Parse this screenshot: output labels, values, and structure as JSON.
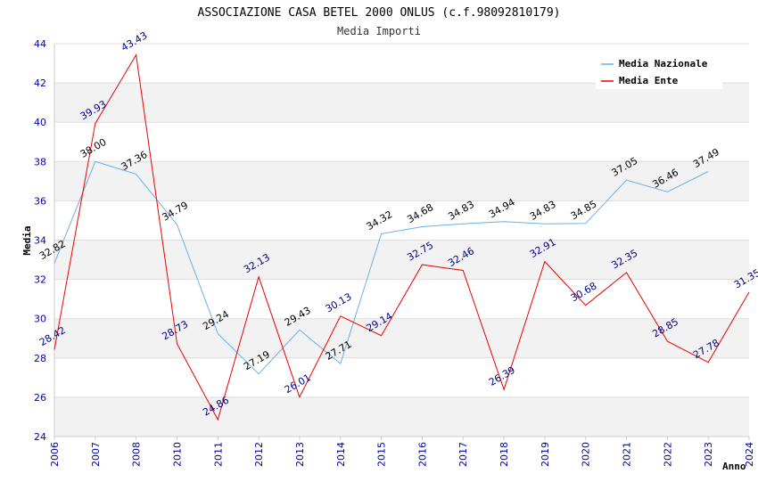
{
  "chart_data": {
    "type": "line",
    "title": "ASSOCIAZIONE CASA BETEL 2000 ONLUS (c.f.98092810179)",
    "subtitle": "Media Importi",
    "xlabel": "Anno",
    "ylabel": "Media",
    "ylim": [
      24,
      44
    ],
    "yticks": [
      "24",
      "26",
      "28",
      "30",
      "32",
      "34",
      "36",
      "38",
      "40",
      "42",
      "44"
    ],
    "categories": [
      "2006",
      "2007",
      "2008",
      "2010",
      "2011",
      "2012",
      "2013",
      "2014",
      "2015",
      "2016",
      "2017",
      "2018",
      "2019",
      "2020",
      "2021",
      "2022",
      "2023",
      "2024"
    ],
    "grid": true,
    "legend_position": "top-right",
    "series": [
      {
        "name": "Media Nazionale",
        "color": "#6aaee8",
        "label_color": "#000000",
        "values": [
          32.82,
          38.0,
          37.36,
          34.79,
          29.24,
          27.19,
          29.43,
          27.71,
          34.32,
          34.68,
          34.83,
          34.94,
          34.83,
          34.85,
          37.05,
          36.46,
          37.49,
          null
        ],
        "labels": [
          "32.82",
          "38.00",
          "37.36",
          "34.79",
          "29.24",
          "27.19",
          "29.43",
          "27.71",
          "34.32",
          "34.68",
          "34.83",
          "34.94",
          "34.83",
          "34.85",
          "37.05",
          "36.46",
          "37.49",
          ""
        ]
      },
      {
        "name": "Media Ente",
        "color": "#ee0000",
        "label_color": "#000088",
        "values": [
          28.42,
          39.93,
          43.43,
          28.73,
          24.86,
          32.13,
          26.01,
          30.13,
          29.14,
          32.75,
          32.46,
          26.39,
          32.91,
          30.68,
          32.35,
          28.85,
          27.78,
          31.35
        ],
        "labels": [
          "28.42",
          "39.93",
          "43.43",
          "28.73",
          "24.86",
          "32.13",
          "26.01",
          "30.13",
          "29.14",
          "32.75",
          "32.46",
          "26.39",
          "32.91",
          "30.68",
          "32.35",
          "28.85",
          "27.78",
          "31.35"
        ]
      }
    ]
  }
}
